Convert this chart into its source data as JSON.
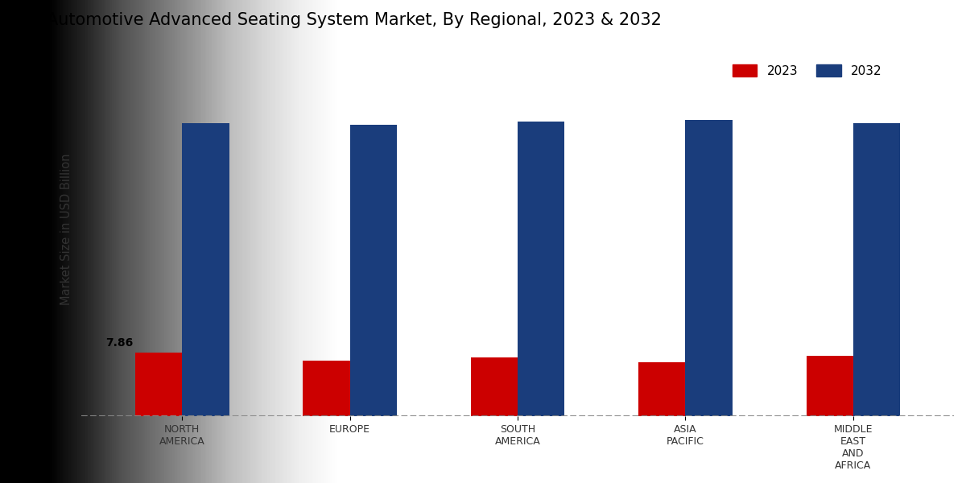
{
  "title": "Automotive Advanced Seating System Market, By Regional, 2023 & 2032",
  "ylabel": "Market Size in USD Billion",
  "categories": [
    "NORTH\nAMERICA",
    "EUROPE",
    "SOUTH\nAMERICA",
    "ASIA\nPACIFIC",
    "MIDDLE\nEAST\nAND\nAFRICA"
  ],
  "values_2023": [
    7.86,
    6.8,
    7.2,
    6.6,
    7.4
  ],
  "values_2032": [
    36.0,
    35.8,
    36.2,
    36.4,
    36.0
  ],
  "color_2023": "#cc0000",
  "color_2032": "#1a3d7c",
  "annotation_label": "7.86",
  "bar_width": 0.28,
  "ylim_min": 0,
  "ylim_max": 46,
  "legend_labels": [
    "2023",
    "2032"
  ],
  "bg_left": "#c8c8c8",
  "bg_right": "#e8e8e8",
  "fig_bg": "#e0e0e0"
}
